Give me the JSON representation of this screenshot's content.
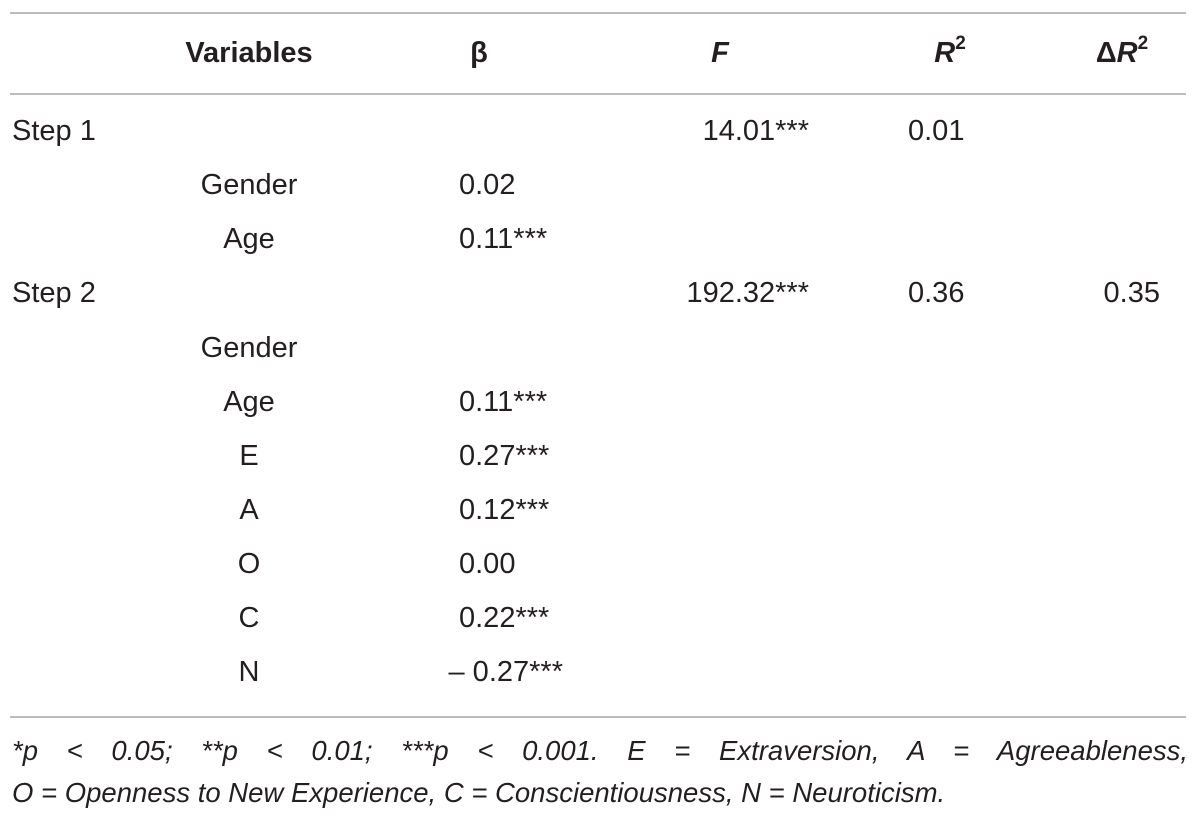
{
  "table": {
    "headers": {
      "variables": "Variables",
      "beta": "β",
      "f": "F",
      "r2_base": "R",
      "r2_sup": "2",
      "dr2_delta": "Δ",
      "dr2_base": "R",
      "dr2_sup": "2"
    },
    "rows": [
      {
        "step": "Step 1",
        "variable": "",
        "beta": "",
        "f": "14.01***",
        "r2": "0.01",
        "dr2": ""
      },
      {
        "step": "",
        "variable": "Gender",
        "beta": "0.02",
        "f": "",
        "r2": "",
        "dr2": ""
      },
      {
        "step": "",
        "variable": "Age",
        "beta": "0.11***",
        "f": "",
        "r2": "",
        "dr2": ""
      },
      {
        "step": "Step 2",
        "variable": "",
        "beta": "",
        "f": "192.32***",
        "r2": "0.36",
        "dr2": "0.35"
      },
      {
        "step": "",
        "variable": "Gender",
        "beta": "",
        "f": "",
        "r2": "",
        "dr2": ""
      },
      {
        "step": "",
        "variable": "Age",
        "beta": "0.11***",
        "f": "",
        "r2": "",
        "dr2": ""
      },
      {
        "step": "",
        "variable": "E",
        "beta": "0.27***",
        "f": "",
        "r2": "",
        "dr2": ""
      },
      {
        "step": "",
        "variable": "A",
        "beta": "0.12***",
        "f": "",
        "r2": "",
        "dr2": ""
      },
      {
        "step": "",
        "variable": "O",
        "beta": "0.00",
        "f": "",
        "r2": "",
        "dr2": ""
      },
      {
        "step": "",
        "variable": "C",
        "beta": "0.22***",
        "f": "",
        "r2": "",
        "dr2": ""
      },
      {
        "step": "",
        "variable": "N",
        "beta": "– 0.27***",
        "f": "",
        "r2": "",
        "dr2": ""
      }
    ]
  },
  "footnote": {
    "line1": "*p < 0.05; **p < 0.01; ***p < 0.001. E = Extraversion, A = Agreeableness,",
    "line2": "O = Openness to New Experience, C = Conscientiousness, N = Neuroticism."
  }
}
